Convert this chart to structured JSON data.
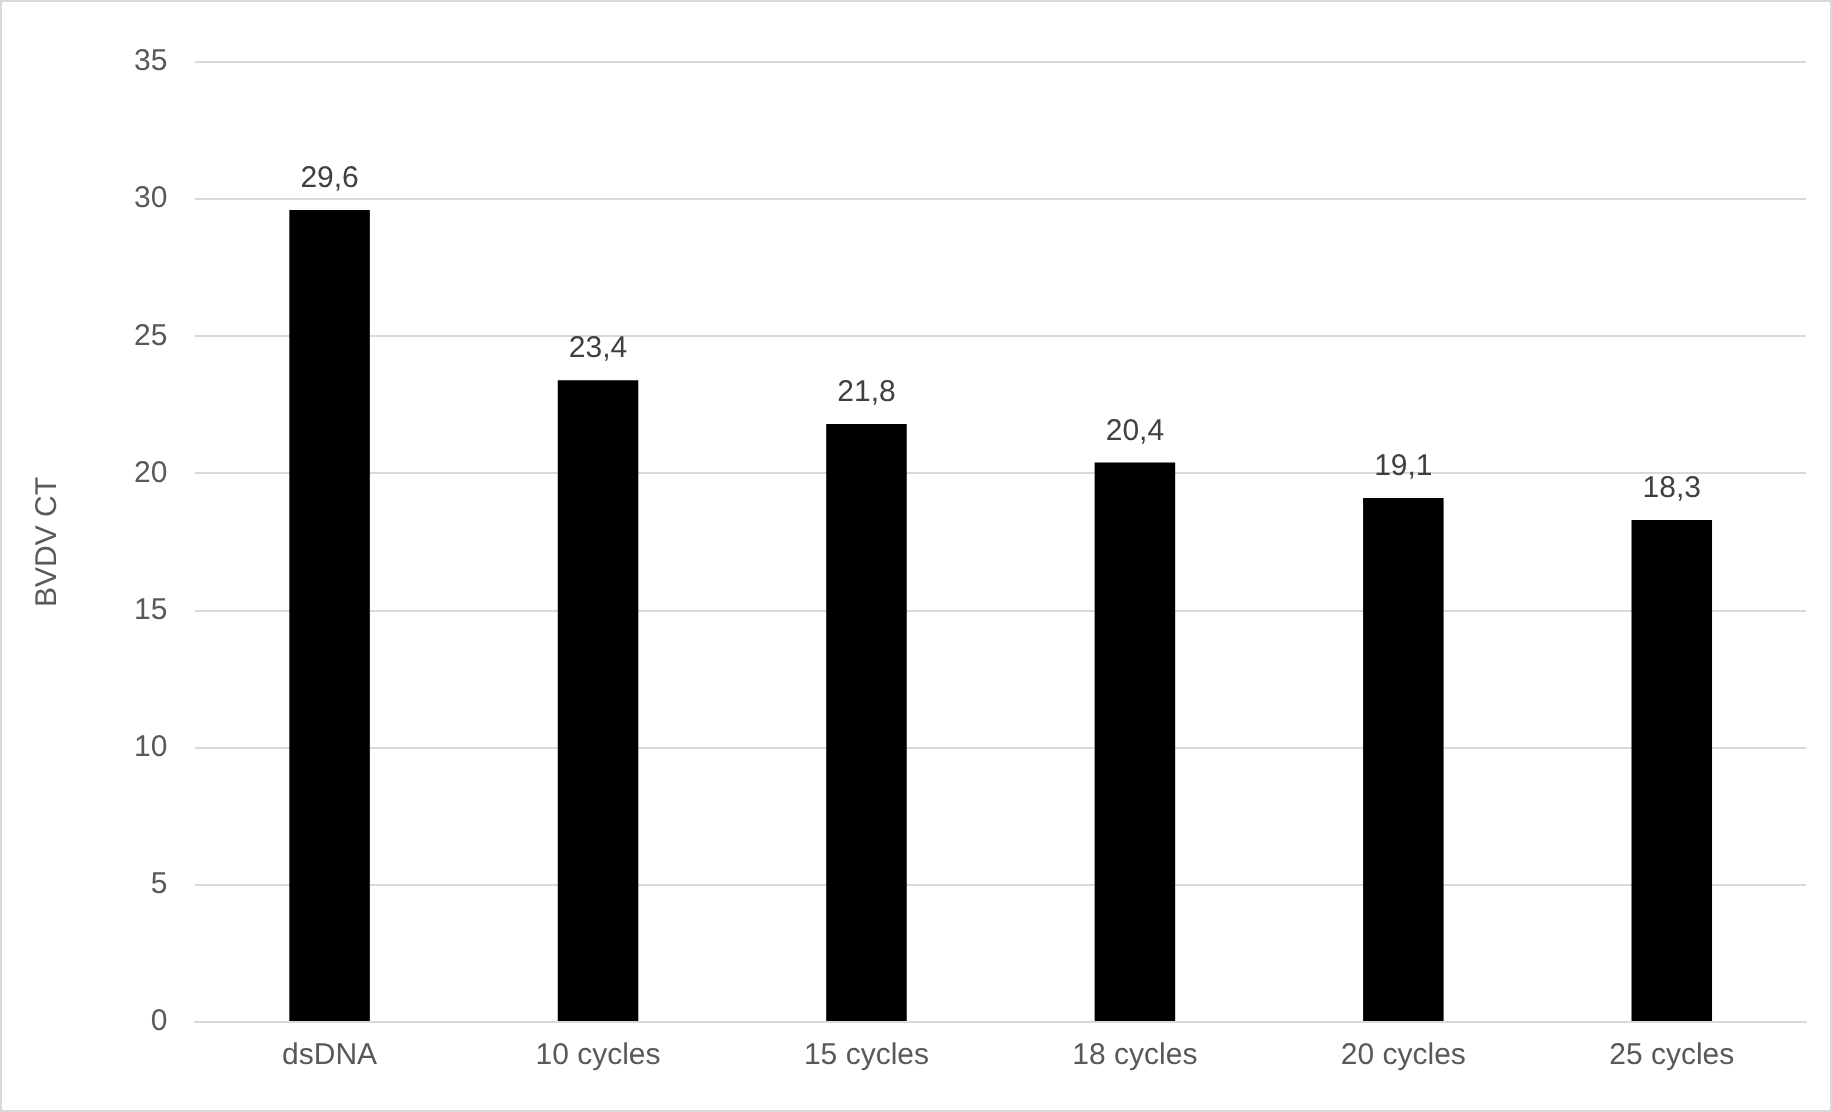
{
  "chart_data": {
    "type": "bar",
    "ylabel": "BVDV CT",
    "categories": [
      "dsDNA",
      "10 cycles",
      "15 cycles",
      "18 cycles",
      "20 cycles",
      "25 cycles"
    ],
    "values": [
      29.6,
      23.4,
      21.8,
      20.4,
      19.1,
      18.3
    ],
    "value_labels": [
      "29,6",
      "23,4",
      "21,8",
      "20,4",
      "19,1",
      "18,3"
    ],
    "color": "#000000",
    "ylim": [
      0,
      35
    ],
    "yticks": [
      0,
      5,
      10,
      15,
      20,
      25,
      30,
      35
    ],
    "grid": "y",
    "legend": false
  }
}
